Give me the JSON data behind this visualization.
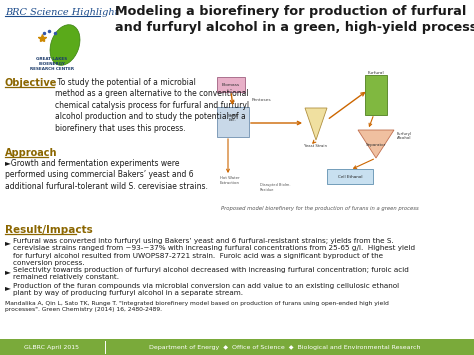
{
  "title": "Modeling a biorefinery for production of furfural\nand furfuryl alcohol in a green, high-yield process",
  "header_label": "BRC Science Highlight",
  "objective_title": "Objective",
  "objective_text": " To study the potential of a microbial\nmethod as a green alternative to the conventional\nchemical catalysis process for furfural and furfuryl\nalcohol production and to study the potential of a\nbiorefinery that uses this process.",
  "approach_title": "Approach",
  "approach_text": "►Growth and fermentation experiments were\nperformed using commercial Bakers’ yeast and 6\nadditional furfural-tolerant wild S. cerevisiae strains.",
  "results_title": "Result/Impacts",
  "bullet1": "Furfural was converted into furfuryl using Bakers’ yeast and 6 furfural-resistant strains; yields from the S.\ncerevisiae strains ranged from ~93-~37% with increasing furfural concentrations from 25-65 g/l.  Highest yield\nfor furfuryl alcohol resulted from UWOPS87-2721 strain.  Furoic acid was a significant byproduct of the\nconversion process.",
  "bullet2": "Selectivity towards production of furfuryl alcohol decreased with increasing furfural concentration; furoic acid\nremained relatively constant.",
  "bullet3": "Production of the furan compounds via microbial conversion can add value to an existing cellulosic ethanol\nplant by way of producing furfuryl alcohol in a separate stream.",
  "citation": "Mandalika A, Qin L, Sato TK, Runge T. \"Integrated biorefinery model based on production of furans using open-ended high yield\nprocesses\". Green Chemistry (2014) 16, 2480-2489.",
  "footer_left": "GLBRC April 2015",
  "footer_right": "Department of Energy  ◆  Office of Science  ◆  Biological and Environmental Research",
  "diagram_caption": "Proposed model biorefinery for the production of furans in a green process",
  "bg_color": "#ffffff",
  "title_color": "#1a1a1a",
  "header_text_color": "#1a4a8a",
  "objective_color": "#8B6600",
  "approach_color": "#8B6600",
  "results_color": "#8B6600",
  "footer_bg": "#7aaa3a",
  "footer_text_color": "#ffffff",
  "body_text_color": "#1a1a1a",
  "underline_color": "#8B6600",
  "arrow_color": "#cc6600",
  "leaf_color": "#5aaa1a",
  "logo_text_color": "#1a3a6a",
  "star_color": "#cc8800"
}
